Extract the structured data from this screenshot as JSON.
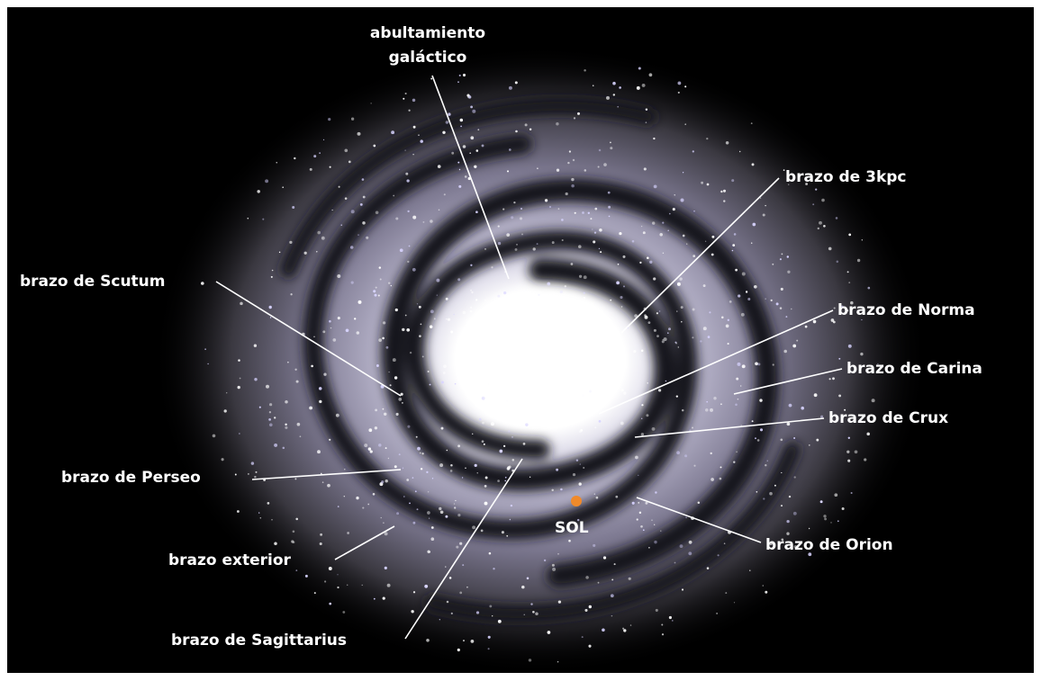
{
  "labels": [
    {
      "text": "abultamiento galáctico"
    },
    {
      "text": "brazo de 3kpc"
    },
    {
      "text": "brazo de Scutum"
    },
    {
      "text": "brazo de Norma"
    },
    {
      "text": "brazo de Carina"
    },
    {
      "text": "brazo de Crux"
    },
    {
      "text": "brazo de Perseo"
    },
    {
      "text": "SOL"
    },
    {
      "text": "brazo de Orion"
    },
    {
      "text": "brazo exterior"
    },
    {
      "text": "brazo de Sagittarius"
    }
  ]
}
